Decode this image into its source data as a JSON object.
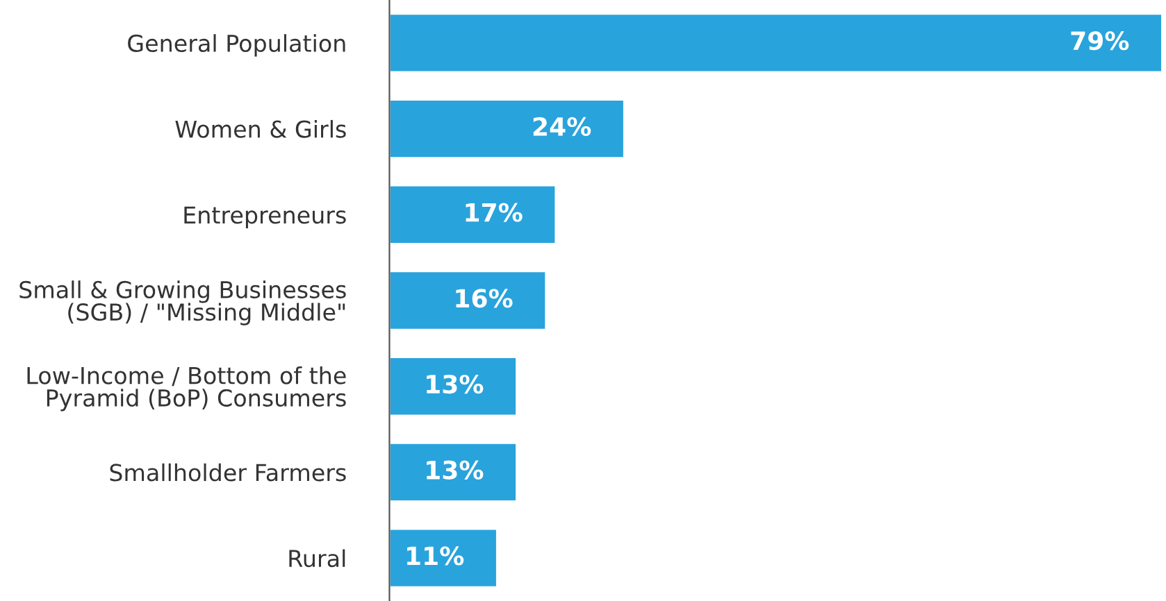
{
  "chart_data": {
    "type": "bar",
    "orientation": "horizontal",
    "categories": [
      "General Population",
      "Women & Girls",
      "Entrepreneurs",
      "Small & Growing Businesses\n(SGB) / \"Missing Middle\"",
      "Low-Income / Bottom of the\nPyramid (BoP) Consumers",
      "Smallholder Farmers",
      "Rural"
    ],
    "values": [
      79,
      24,
      17,
      16,
      13,
      13,
      11
    ],
    "value_labels": [
      "79%",
      "24%",
      "17%",
      "16%",
      "13%",
      "13%",
      "11%"
    ],
    "color": "#29a3dc",
    "grid": false,
    "legend": false
  }
}
